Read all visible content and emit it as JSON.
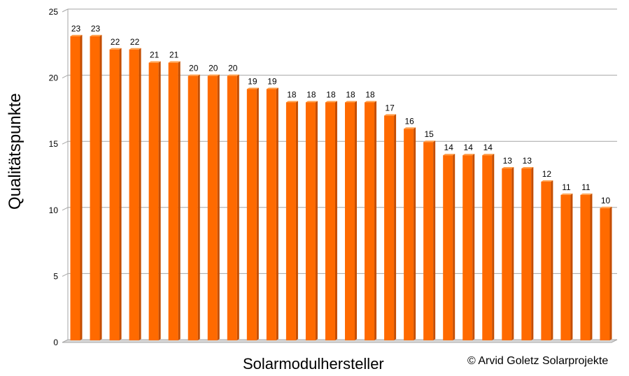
{
  "chart_data": {
    "type": "bar",
    "categories": [
      "",
      "",
      "",
      "",
      "",
      "",
      "",
      "",
      "",
      "",
      "",
      "",
      "",
      "",
      "",
      "",
      "",
      "",
      "",
      "",
      "",
      "",
      "",
      "",
      "",
      "",
      "",
      ""
    ],
    "values": [
      23,
      23,
      22,
      22,
      21,
      21,
      20,
      20,
      20,
      19,
      19,
      18,
      18,
      18,
      18,
      18,
      17,
      16,
      15,
      14,
      14,
      14,
      13,
      13,
      12,
      11,
      11,
      10
    ],
    "title": "",
    "xlabel": "Solarmodulhersteller",
    "ylabel": "Qualitätspunkte",
    "ylim": [
      0,
      25
    ],
    "yticks": [
      0,
      5,
      10,
      15,
      20,
      25
    ],
    "grid": true,
    "data_labels": true,
    "legend": "none",
    "bar_color": "#ff6a00",
    "bar_dark_color": "#c44d00",
    "bar_top_color": "#ffa04d"
  },
  "footer": {
    "copyright": "© Arvid Goletz  Solarprojekte"
  }
}
